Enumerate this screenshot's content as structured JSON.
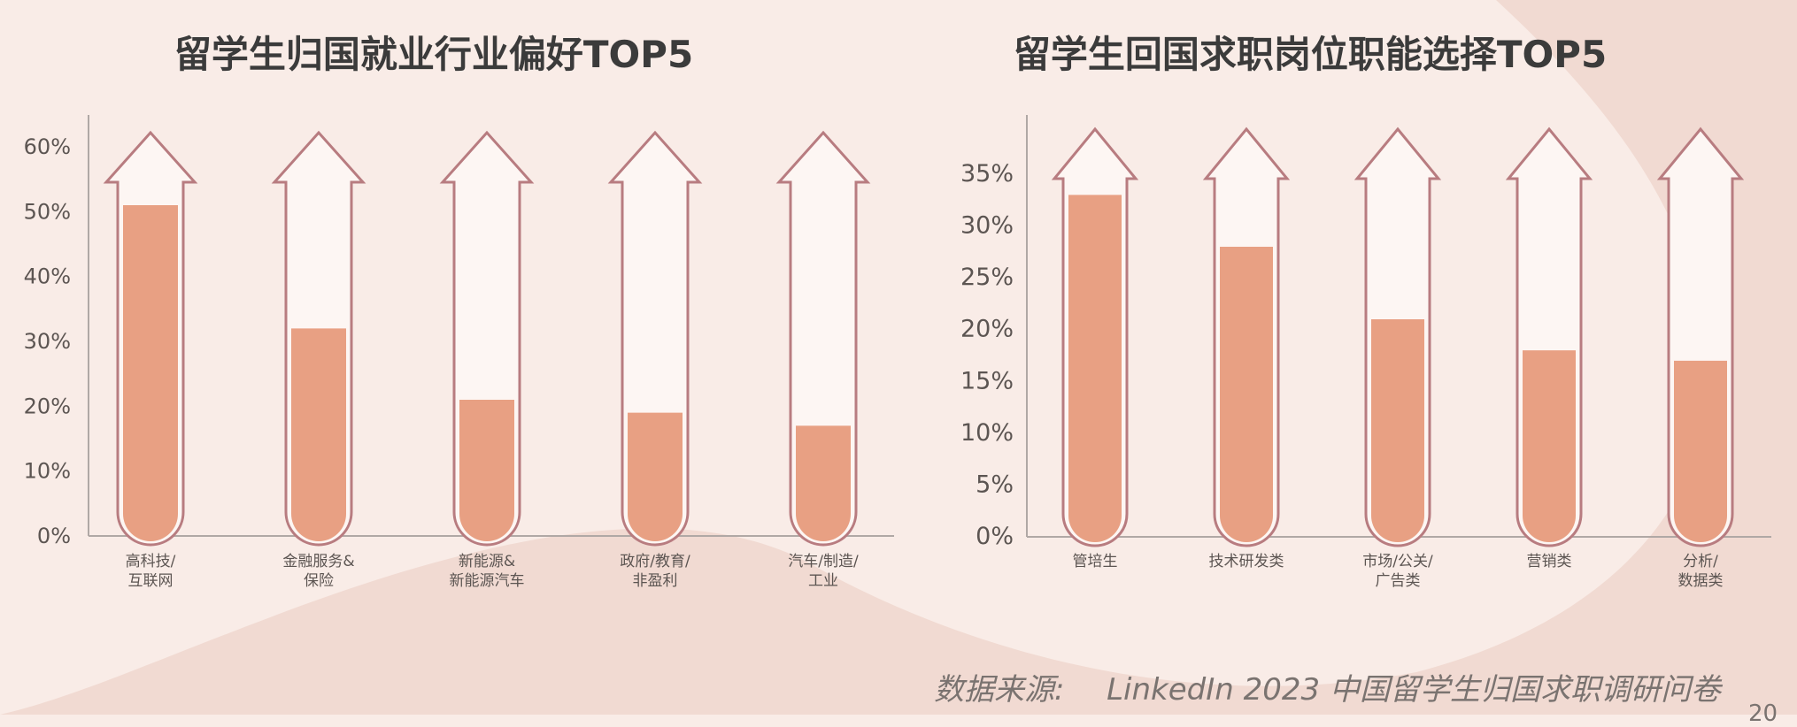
{
  "source_label": "数据来源:",
  "source_text": "LinkedIn 2023 中国留学生归国求职调研问卷",
  "page_number": "20",
  "colors": {
    "background": "#f9ece7",
    "blob": "#f1dad2",
    "fill": "#e8a083",
    "outline": "#b87c80",
    "axis": "#b0a8a5",
    "text": "#5c5552"
  },
  "chart_data": [
    {
      "type": "bar",
      "title": "留学生归国就业行业偏好TOP5",
      "categories": [
        [
          "高科技/",
          "互联网"
        ],
        [
          "金融服务&",
          "保险"
        ],
        [
          "新能源&",
          "新能源汽车"
        ],
        [
          "政府/教育/",
          "非盈利"
        ],
        [
          "汽车/制造/",
          "工业"
        ]
      ],
      "values": [
        51,
        32,
        21,
        19,
        17
      ],
      "ylim": [
        0,
        60
      ],
      "yticks": [
        "0%",
        "10%",
        "20%",
        "30%",
        "40%",
        "50%",
        "60%"
      ],
      "grid": false,
      "xlabel": "",
      "ylabel": ""
    },
    {
      "type": "bar",
      "title": "留学生回国求职岗位职能选择TOP5",
      "categories": [
        [
          "管培生"
        ],
        [
          "技术研发类"
        ],
        [
          "市场/公关/",
          "广告类"
        ],
        [
          "营销类"
        ],
        [
          "分析/",
          "数据类"
        ]
      ],
      "values": [
        33,
        28,
        21,
        18,
        17
      ],
      "ylim": [
        0,
        35
      ],
      "yticks": [
        "0%",
        "5%",
        "10%",
        "15%",
        "20%",
        "25%",
        "30%",
        "35%"
      ],
      "grid": false,
      "xlabel": "",
      "ylabel": ""
    }
  ]
}
